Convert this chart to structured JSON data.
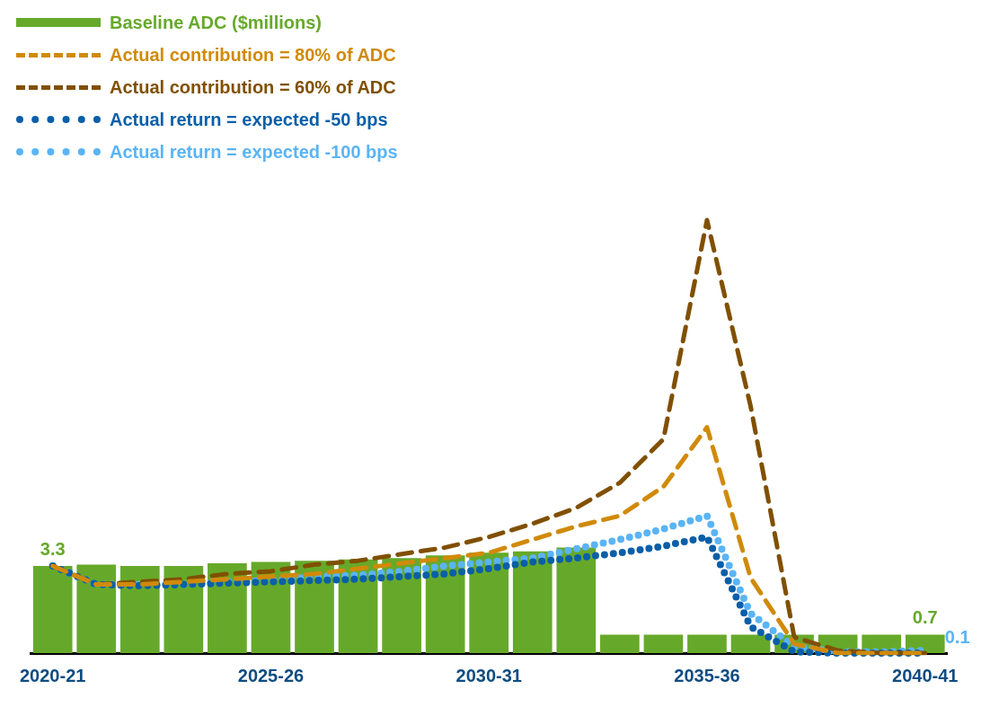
{
  "chart_data": {
    "type": "bar",
    "categories": [
      "2020-21",
      null,
      null,
      null,
      null,
      "2025-26",
      null,
      null,
      null,
      null,
      "2030-31",
      null,
      null,
      null,
      null,
      "2035-36",
      null,
      null,
      null,
      null,
      "2040-41"
    ],
    "series": [
      {
        "name": "Baseline ADC ($millions)",
        "color": "#66a92a",
        "values": [
          3.3,
          3.35,
          3.3,
          3.3,
          3.4,
          3.45,
          3.5,
          3.55,
          3.6,
          3.7,
          3.8,
          3.85,
          4.0,
          0.7,
          0.7,
          0.7,
          0.7,
          0.7,
          0.7,
          0.7,
          0.7
        ],
        "value_labels": [
          "3.3",
          null,
          null,
          null,
          null,
          null,
          null,
          null,
          null,
          null,
          null,
          null,
          null,
          null,
          null,
          null,
          null,
          null,
          null,
          null,
          "0.7"
        ]
      },
      {
        "name": "Actual contribution = 80% of ADC",
        "type": "line",
        "line_style": "dashed",
        "color": "#d08a0a",
        "values": [
          3.3,
          2.6,
          2.6,
          2.7,
          2.8,
          2.9,
          3.0,
          3.2,
          3.4,
          3.6,
          3.8,
          4.3,
          4.8,
          5.2,
          6.3,
          8.55,
          2.85,
          0.35,
          0,
          0,
          0
        ]
      },
      {
        "name": "Actual contribution = 60% of ADC",
        "type": "line",
        "line_style": "dashed",
        "color": "#805000",
        "values": [
          3.3,
          2.6,
          2.7,
          2.8,
          3.0,
          3.1,
          3.35,
          3.5,
          3.75,
          4.0,
          4.4,
          4.9,
          5.5,
          6.45,
          8.1,
          16.4,
          9.35,
          0.6,
          0.1,
          0,
          0
        ]
      },
      {
        "name": "Actual return = expected -50 bps",
        "type": "line",
        "line_style": "dotted",
        "color": "#0a5fa8",
        "values": [
          3.3,
          2.6,
          2.55,
          2.6,
          2.65,
          2.7,
          2.75,
          2.8,
          2.9,
          3.0,
          3.2,
          3.45,
          3.6,
          3.8,
          4.05,
          4.4,
          1.0,
          0.05,
          0,
          0,
          0
        ]
      },
      {
        "name": "Actual return = expected -100 bps",
        "type": "line",
        "line_style": "dotted",
        "color": "#5ab4f5",
        "values": [
          3.3,
          2.6,
          2.6,
          2.6,
          2.7,
          2.75,
          2.9,
          2.95,
          3.1,
          3.3,
          3.45,
          3.6,
          3.95,
          4.3,
          4.7,
          5.2,
          1.5,
          0.25,
          0.05,
          0.05,
          0.1
        ],
        "value_labels": [
          null,
          null,
          null,
          null,
          null,
          null,
          null,
          null,
          null,
          null,
          null,
          null,
          null,
          null,
          null,
          null,
          null,
          null,
          null,
          null,
          "0.1"
        ]
      }
    ],
    "legend": "top left",
    "grid": false
  }
}
